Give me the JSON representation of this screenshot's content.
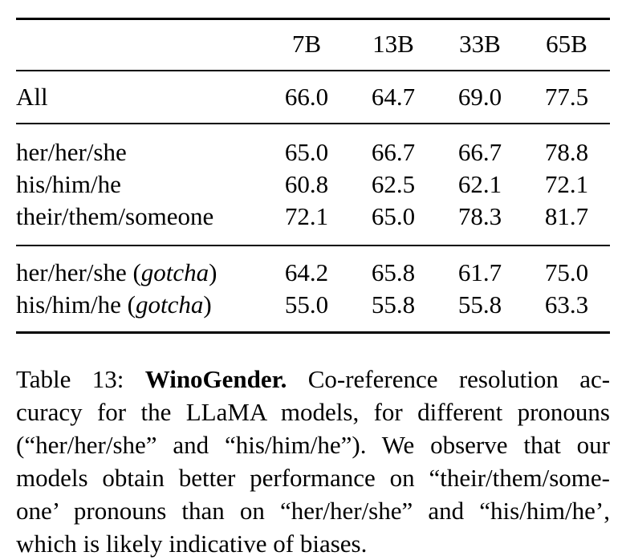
{
  "table": {
    "columns": [
      "7B",
      "13B",
      "33B",
      "65B"
    ],
    "sections": [
      {
        "name": "all",
        "rows": [
          {
            "label": "All",
            "values": [
              "66.0",
              "64.7",
              "69.0",
              "77.5"
            ]
          }
        ]
      },
      {
        "name": "pronouns",
        "rows": [
          {
            "label": "her/her/she",
            "values": [
              "65.0",
              "66.7",
              "66.7",
              "78.8"
            ]
          },
          {
            "label": "his/him/he",
            "values": [
              "60.8",
              "62.5",
              "62.1",
              "72.1"
            ]
          },
          {
            "label": "their/them/someone",
            "values": [
              "72.1",
              "65.0",
              "78.3",
              "81.7"
            ]
          }
        ]
      },
      {
        "name": "gotcha",
        "rows": [
          {
            "label_prefix": "her/her/she (",
            "note": "gotcha",
            "label_suffix": ")",
            "values": [
              "64.2",
              "65.8",
              "61.7",
              "75.0"
            ]
          },
          {
            "label_prefix": "his/him/he (",
            "note": "gotcha",
            "label_suffix": ")",
            "values": [
              "55.0",
              "55.8",
              "55.8",
              "63.3"
            ]
          }
        ]
      }
    ]
  },
  "caption": {
    "label": "Table 13:",
    "title": "WinoGender.",
    "line1_rest": "Co-reference resolution ac-",
    "lines": [
      "curacy for the LLaMA models, for different pronouns",
      "(“her/her/she” and “his/him/he”). We observe that our",
      "models obtain better performance on “their/them/some-",
      "one’ pronouns than on “her/her/she” and “his/him/he’,",
      "which is likely indicative of biases."
    ]
  },
  "colors": {
    "text": "#000000",
    "background": "#ffffff",
    "rule": "#000000"
  }
}
